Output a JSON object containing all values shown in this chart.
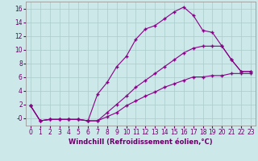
{
  "xlabel": "Windchill (Refroidissement éolien,°C)",
  "background_color": "#cce8e8",
  "line_color": "#880088",
  "grid_color": "#aacccc",
  "xlim": [
    -0.5,
    23.5
  ],
  "ylim": [
    -1.1,
    17.0
  ],
  "xticks": [
    0,
    1,
    2,
    3,
    4,
    5,
    6,
    7,
    8,
    9,
    10,
    11,
    12,
    13,
    14,
    15,
    16,
    17,
    18,
    19,
    20,
    21,
    22,
    23
  ],
  "yticks": [
    0,
    2,
    4,
    6,
    8,
    10,
    12,
    14,
    16
  ],
  "ytick_labels": [
    "-0",
    "2",
    "4",
    "6",
    "8",
    "10",
    "12",
    "14",
    "16"
  ],
  "line1_x": [
    0,
    1,
    2,
    3,
    4,
    5,
    6,
    7,
    8,
    9,
    10,
    11,
    12,
    13,
    14,
    15,
    16,
    17,
    18,
    19,
    20,
    21,
    22,
    23
  ],
  "line1_y": [
    1.8,
    -0.4,
    -0.2,
    -0.2,
    -0.2,
    -0.2,
    -0.4,
    3.5,
    5.2,
    7.5,
    9.0,
    11.5,
    13.0,
    13.5,
    14.5,
    15.5,
    16.2,
    15.0,
    12.8,
    12.5,
    10.5,
    8.5,
    6.8,
    6.8
  ],
  "line2_x": [
    0,
    1,
    2,
    3,
    4,
    5,
    6,
    7,
    8,
    9,
    10,
    11,
    12,
    13,
    14,
    15,
    16,
    17,
    18,
    19,
    20,
    21,
    22,
    23
  ],
  "line2_y": [
    1.8,
    -0.4,
    -0.2,
    -0.2,
    -0.2,
    -0.2,
    -0.4,
    -0.4,
    0.8,
    2.0,
    3.2,
    4.5,
    5.5,
    6.5,
    7.5,
    8.5,
    9.5,
    10.2,
    10.5,
    10.5,
    10.5,
    8.5,
    6.8,
    6.8
  ],
  "line3_x": [
    0,
    1,
    2,
    3,
    4,
    5,
    6,
    7,
    8,
    9,
    10,
    11,
    12,
    13,
    14,
    15,
    16,
    17,
    18,
    19,
    20,
    21,
    22,
    23
  ],
  "line3_y": [
    1.8,
    -0.4,
    -0.2,
    -0.2,
    -0.2,
    -0.2,
    -0.4,
    -0.4,
    0.2,
    0.8,
    1.8,
    2.5,
    3.2,
    3.8,
    4.5,
    5.0,
    5.5,
    6.0,
    6.0,
    6.2,
    6.2,
    6.5,
    6.5,
    6.5
  ],
  "tick_fontsize": 5.5,
  "xlabel_fontsize": 6.0,
  "tick_color": "#660066",
  "spine_color": "#999999"
}
